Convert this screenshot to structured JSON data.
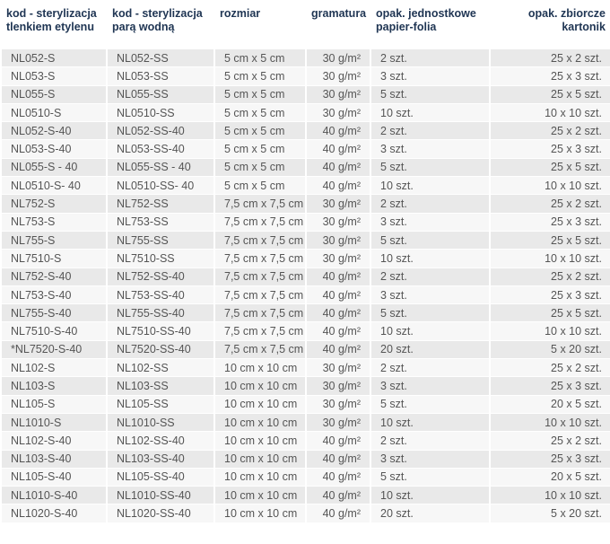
{
  "table": {
    "header": [
      "kod - sterylizacja\ntlenkiem etylenu",
      "kod - sterylizacja\nparą wodną",
      "rozmiar",
      "gramatura",
      "opak. jednostkowe\npapier-folia",
      "opak. zbiorcze\nkartonik"
    ],
    "rows": [
      [
        "NL052-S",
        "NL052-SS",
        "5 cm x 5 cm",
        "30 g/m²",
        "2 szt.",
        "25 x 2 szt."
      ],
      [
        "NL053-S",
        "NL053-SS",
        "5 cm x 5 cm",
        "30 g/m²",
        "3 szt.",
        "25 x 3 szt."
      ],
      [
        "NL055-S",
        "NL055-SS",
        "5 cm x 5 cm",
        "30 g/m²",
        "5 szt.",
        "25 x 5 szt."
      ],
      [
        "NL0510-S",
        "NL0510-SS",
        "5 cm x 5 cm",
        "30 g/m²",
        "10 szt.",
        "10 x 10 szt."
      ],
      [
        "NL052-S-40",
        "NL052-SS-40",
        "5 cm x 5 cm",
        "40 g/m²",
        "2 szt.",
        "25 x 2 szt."
      ],
      [
        "NL053-S-40",
        "NL053-SS-40",
        "5 cm x 5 cm",
        "40 g/m²",
        "3 szt.",
        "25 x 3 szt."
      ],
      [
        "NL055-S - 40",
        "NL055-SS - 40",
        "5 cm x 5 cm",
        "40 g/m²",
        "5 szt.",
        "25 x 5 szt."
      ],
      [
        "NL0510-S- 40",
        "NL0510-SS- 40",
        "5 cm x 5 cm",
        "40 g/m²",
        "10 szt.",
        "10 x 10 szt."
      ],
      [
        "NL752-S",
        "NL752-SS",
        "7,5 cm x 7,5 cm",
        "30 g/m²",
        "2 szt.",
        "25 x 2 szt."
      ],
      [
        "NL753-S",
        "NL753-SS",
        "7,5 cm x 7,5 cm",
        "30 g/m²",
        "3 szt.",
        "25 x 3 szt."
      ],
      [
        "NL755-S",
        "NL755-SS",
        "7,5 cm x 7,5 cm",
        "30 g/m²",
        "5 szt.",
        "25 x 5 szt."
      ],
      [
        "NL7510-S",
        "NL7510-SS",
        "7,5 cm x 7,5 cm",
        "30 g/m²",
        "10 szt.",
        "10 x 10 szt."
      ],
      [
        "NL752-S-40",
        "NL752-SS-40",
        "7,5 cm x 7,5 cm",
        "40 g/m²",
        "2 szt.",
        "25 x 2 szt."
      ],
      [
        "NL753-S-40",
        "NL753-SS-40",
        "7,5 cm x 7,5 cm",
        "40 g/m²",
        "3 szt.",
        "25 x 3 szt."
      ],
      [
        "NL755-S-40",
        "NL755-SS-40",
        "7,5 cm x 7,5 cm",
        "40 g/m²",
        "5 szt.",
        "25 x 5 szt."
      ],
      [
        "NL7510-S-40",
        "NL7510-SS-40",
        "7,5 cm x 7,5 cm",
        "40 g/m²",
        "10 szt.",
        "10 x 10 szt."
      ],
      [
        "*NL7520-S-40",
        "NL7520-SS-40",
        "7,5 cm x 7,5 cm",
        "40 g/m²",
        "20 szt.",
        "5 x 20 szt."
      ],
      [
        "NL102-S",
        "NL102-SS",
        "10 cm x 10 cm",
        "30 g/m²",
        "2 szt.",
        "25 x 2 szt."
      ],
      [
        "NL103-S",
        "NL103-SS",
        "10 cm x 10 cm",
        "30 g/m²",
        "3 szt.",
        "25 x 3 szt."
      ],
      [
        "NL105-S",
        "NL105-SS",
        "10 cm x 10 cm",
        "30 g/m²",
        "5 szt.",
        "20 x 5 szt."
      ],
      [
        "NL1010-S",
        "NL1010-SS",
        "10 cm x 10 cm",
        "30 g/m²",
        "10 szt.",
        "10 x 10 szt."
      ],
      [
        "NL102-S-40",
        "NL102-SS-40",
        "10 cm x 10 cm",
        "40 g/m²",
        "2 szt.",
        "25 x 2 szt."
      ],
      [
        "NL103-S-40",
        "NL103-SS-40",
        "10 cm x 10 cm",
        "40 g/m²",
        "3 szt.",
        "25 x 3 szt."
      ],
      [
        "NL105-S-40",
        "NL105-SS-40",
        "10 cm x 10 cm",
        "40 g/m²",
        "5 szt.",
        "20 x 5 szt."
      ],
      [
        "NL1010-S-40",
        "NL1010-SS-40",
        "10 cm x 10 cm",
        "40 g/m²",
        "10 szt.",
        "10 x 10 szt."
      ],
      [
        "NL1020-S-40",
        "NL1020-SS-40",
        "10 cm x 10 cm",
        "40 g/m²",
        "20 szt.",
        "5 x 20 szt."
      ]
    ]
  }
}
